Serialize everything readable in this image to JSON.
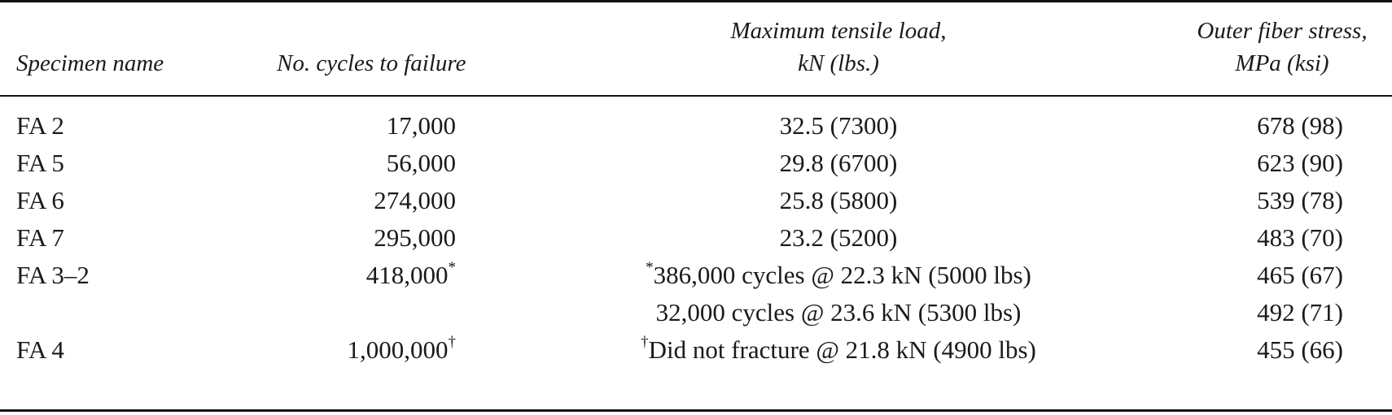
{
  "table": {
    "headers": {
      "specimen": [
        "Specimen name"
      ],
      "cycles": [
        "No. cycles to failure"
      ],
      "load": [
        "Maximum tensile load,",
        "kN (lbs.)"
      ],
      "stress": [
        "Outer fiber stress,",
        "MPa (ksi)"
      ]
    },
    "rows": [
      {
        "specimen": "FA 2",
        "cycles": "17,000",
        "cycles_mark": "",
        "load_mark": "",
        "load": "32.5 (7300)",
        "stress": "678 (98)"
      },
      {
        "specimen": "FA 5",
        "cycles": "56,000",
        "cycles_mark": "",
        "load_mark": "",
        "load": "29.8 (6700)",
        "stress": "623 (90)"
      },
      {
        "specimen": "FA 6",
        "cycles": "274,000",
        "cycles_mark": "",
        "load_mark": "",
        "load": "25.8 (5800)",
        "stress": "539 (78)"
      },
      {
        "specimen": "FA 7",
        "cycles": "295,000",
        "cycles_mark": "",
        "load_mark": "",
        "load": "23.2 (5200)",
        "stress": "483 (70)"
      },
      {
        "specimen": "FA 3–2",
        "cycles": "418,000",
        "cycles_mark": "*",
        "load_mark": "*",
        "load": "386,000 cycles @ 22.3 kN (5000 lbs)",
        "stress": "465 (67)"
      },
      {
        "specimen": "",
        "cycles": "",
        "cycles_mark": "",
        "load_mark": "",
        "load": "32,000 cycles @ 23.6 kN (5300 lbs)",
        "stress": "492 (71)"
      },
      {
        "specimen": "FA 4",
        "cycles": "1,000,000",
        "cycles_mark": "†",
        "load_mark": "†",
        "load": "Did not fracture @ 21.8 kN (4900 lbs)",
        "stress": "455 (66)"
      }
    ]
  }
}
